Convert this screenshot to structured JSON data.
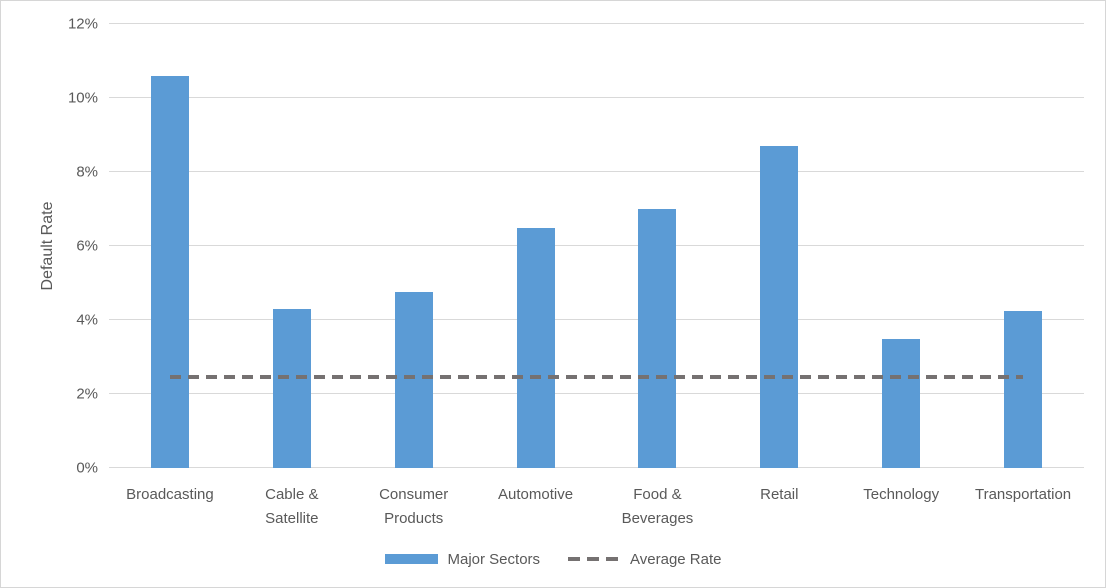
{
  "chart_data": {
    "type": "bar",
    "title": "",
    "xlabel": "",
    "ylabel": "Default Rate",
    "ylim": [
      0,
      12
    ],
    "yticks": [
      0,
      2,
      4,
      6,
      8,
      10,
      12
    ],
    "ytick_labels": [
      "0%",
      "2%",
      "4%",
      "6%",
      "8%",
      "10%",
      "12%"
    ],
    "grid": "horizontal",
    "legend_position": "bottom",
    "categories": [
      "Broadcasting",
      "Cable & Satellite",
      "Consumer Products",
      "Automotive",
      "Food & Beverages",
      "Retail",
      "Technology",
      "Transportation"
    ],
    "series": [
      {
        "name": "Major Sectors",
        "type": "bar",
        "color": "#5B9BD5",
        "values": [
          10.6,
          4.3,
          4.75,
          6.5,
          7.0,
          8.7,
          3.5,
          4.25
        ]
      },
      {
        "name": "Average Rate",
        "type": "dashed-line",
        "color": "#757171",
        "value": 2.45
      }
    ]
  },
  "colors": {
    "bar": "#5B9BD5",
    "average_line": "#757171",
    "gridline": "#D9D9D9",
    "axis_text": "#595959",
    "background": "#FFFFFF",
    "frame_border": "#D6D6D6"
  }
}
